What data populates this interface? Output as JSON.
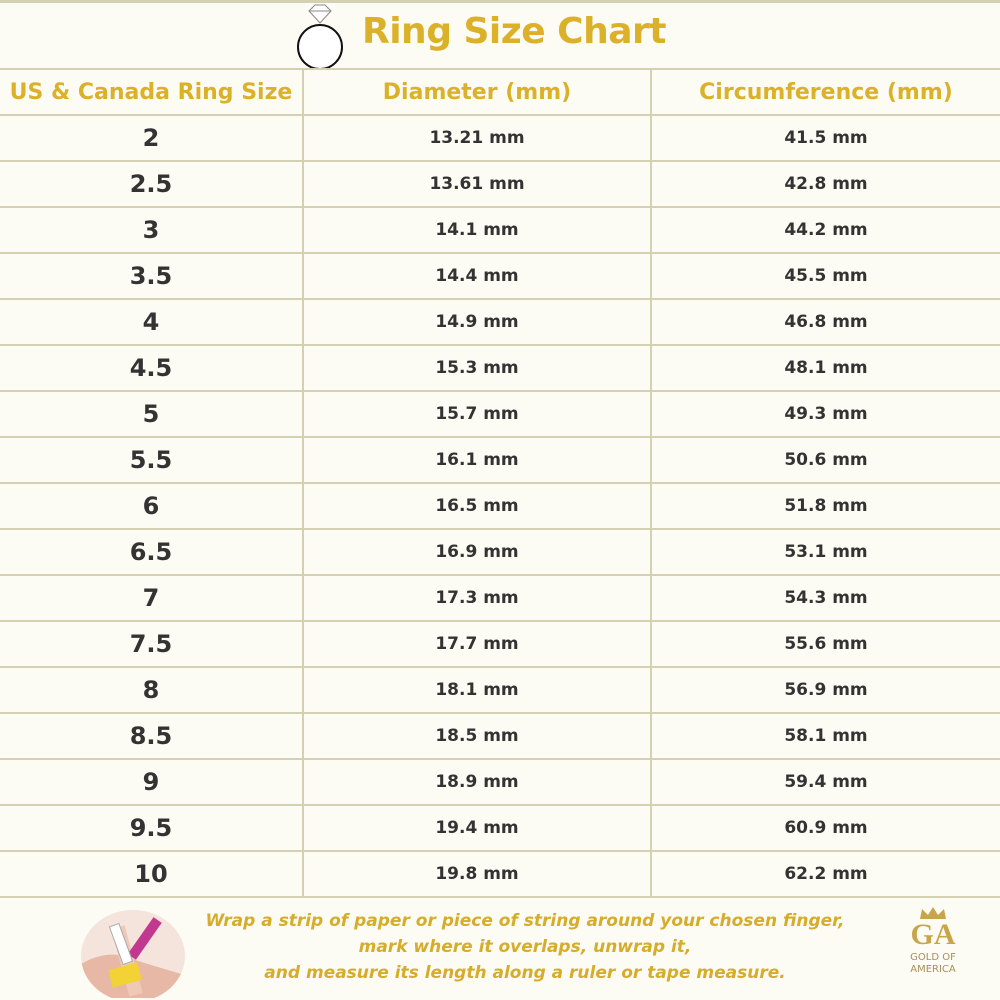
{
  "title": "Ring Size Chart",
  "colors": {
    "accent": "#dcb12a",
    "grid": "#d4d0b2",
    "text": "#333333",
    "background": "#fcfbf4"
  },
  "table": {
    "headers": [
      "US & Canada Ring Size",
      "Diameter (mm)",
      "Circumference (mm)"
    ],
    "rows": [
      [
        "2",
        "13.21 mm",
        "41.5 mm"
      ],
      [
        "2.5",
        "13.61 mm",
        "42.8 mm"
      ],
      [
        "3",
        "14.1 mm",
        "44.2 mm"
      ],
      [
        "3.5",
        "14.4 mm",
        "45.5 mm"
      ],
      [
        "4",
        "14.9 mm",
        "46.8 mm"
      ],
      [
        "4.5",
        "15.3 mm",
        "48.1 mm"
      ],
      [
        "5",
        "15.7 mm",
        "49.3 mm"
      ],
      [
        "5.5",
        "16.1 mm",
        "50.6 mm"
      ],
      [
        "6",
        "16.5 mm",
        "51.8 mm"
      ],
      [
        "6.5",
        "16.9 mm",
        "53.1 mm"
      ],
      [
        "7",
        "17.3 mm",
        "54.3 mm"
      ],
      [
        "7.5",
        "17.7 mm",
        "55.6 mm"
      ],
      [
        "8",
        "18.1 mm",
        "56.9 mm"
      ],
      [
        "8.5",
        "18.5 mm",
        "58.1 mm"
      ],
      [
        "9",
        "18.9 mm",
        "59.4 mm"
      ],
      [
        "9.5",
        "19.4 mm",
        "60.9 mm"
      ],
      [
        "10",
        "19.8 mm",
        "62.2 mm"
      ]
    ]
  },
  "footer": {
    "instructions": [
      "Wrap a strip of paper or piece of string around your chosen finger,",
      "mark where it overlaps, unwrap it,",
      "and measure its length along a ruler or tape measure."
    ],
    "logo": {
      "monogram": "GA",
      "brand_line1": "GOLD OF",
      "brand_line2": "AMERICA"
    }
  }
}
